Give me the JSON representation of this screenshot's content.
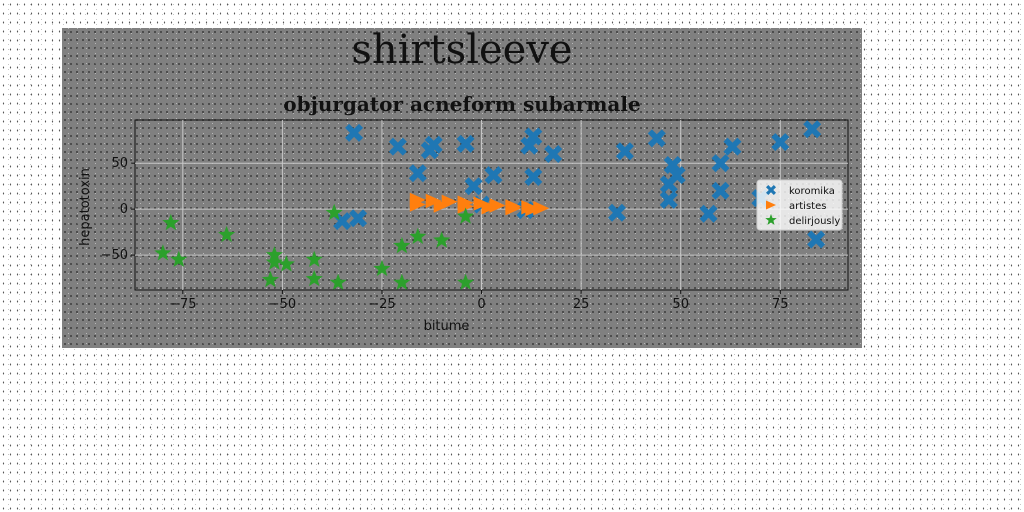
{
  "chart_data": {
    "type": "scatter",
    "suptitle": "shirtsleeve",
    "title": "objurgator acneform subarmale",
    "xlabel": "bitume",
    "ylabel": "hepatotoxin",
    "xlim": [
      -87,
      92
    ],
    "ylim": [
      -88,
      97
    ],
    "xticks": [
      -75,
      -50,
      -25,
      0,
      25,
      50,
      75
    ],
    "yticks": [
      -50,
      0,
      50
    ],
    "grid": true,
    "legend_position": "center-right",
    "series": [
      {
        "name": "koromika",
        "marker": "X",
        "color": "#1f77b4",
        "points": [
          [
            -32,
            83
          ],
          [
            -21,
            68
          ],
          [
            -13,
            64
          ],
          [
            -12,
            70
          ],
          [
            -4,
            71
          ],
          [
            -16,
            39
          ],
          [
            3,
            37
          ],
          [
            -2,
            25
          ],
          [
            0,
            5
          ],
          [
            13,
            35
          ],
          [
            12,
            69
          ],
          [
            13,
            79
          ],
          [
            18,
            60
          ],
          [
            36,
            63
          ],
          [
            44,
            77
          ],
          [
            48,
            48
          ],
          [
            49,
            37
          ],
          [
            47,
            27
          ],
          [
            47,
            10
          ],
          [
            34,
            -4
          ],
          [
            57,
            -5
          ],
          [
            60,
            50
          ],
          [
            60,
            20
          ],
          [
            63,
            68
          ],
          [
            75,
            73
          ],
          [
            83,
            87
          ],
          [
            84,
            -33
          ],
          [
            70,
            12
          ],
          [
            -35,
            -13
          ],
          [
            -31,
            -10
          ],
          [
            11,
            -1
          ]
        ]
      },
      {
        "name": "artistes",
        "marker": "triangle-right",
        "color": "#ff7f0e",
        "points": [
          [
            -16,
            10
          ],
          [
            -12,
            9
          ],
          [
            -8,
            8
          ],
          [
            -4,
            7
          ],
          [
            0,
            6
          ],
          [
            4,
            4
          ],
          [
            8,
            3
          ],
          [
            12,
            2
          ],
          [
            15,
            1
          ],
          [
            -16,
            5
          ],
          [
            -10,
            4
          ],
          [
            -4,
            3
          ],
          [
            2,
            2
          ],
          [
            8,
            1
          ],
          [
            13,
            0
          ]
        ]
      },
      {
        "name": "delirjously",
        "marker": "star",
        "color": "#2ca02c",
        "points": [
          [
            -78,
            -15
          ],
          [
            -80,
            -48
          ],
          [
            -76,
            -55
          ],
          [
            -64,
            -28
          ],
          [
            -52,
            -50
          ],
          [
            -52,
            -58
          ],
          [
            -49,
            -60
          ],
          [
            -53,
            -77
          ],
          [
            -42,
            -76
          ],
          [
            -42,
            -55
          ],
          [
            -36,
            -80
          ],
          [
            -37,
            -4
          ],
          [
            -25,
            -65
          ],
          [
            -20,
            -40
          ],
          [
            -20,
            -80
          ],
          [
            -16,
            -30
          ],
          [
            -10,
            -34
          ],
          [
            -4,
            -8
          ],
          [
            -4,
            -80
          ]
        ]
      }
    ]
  }
}
